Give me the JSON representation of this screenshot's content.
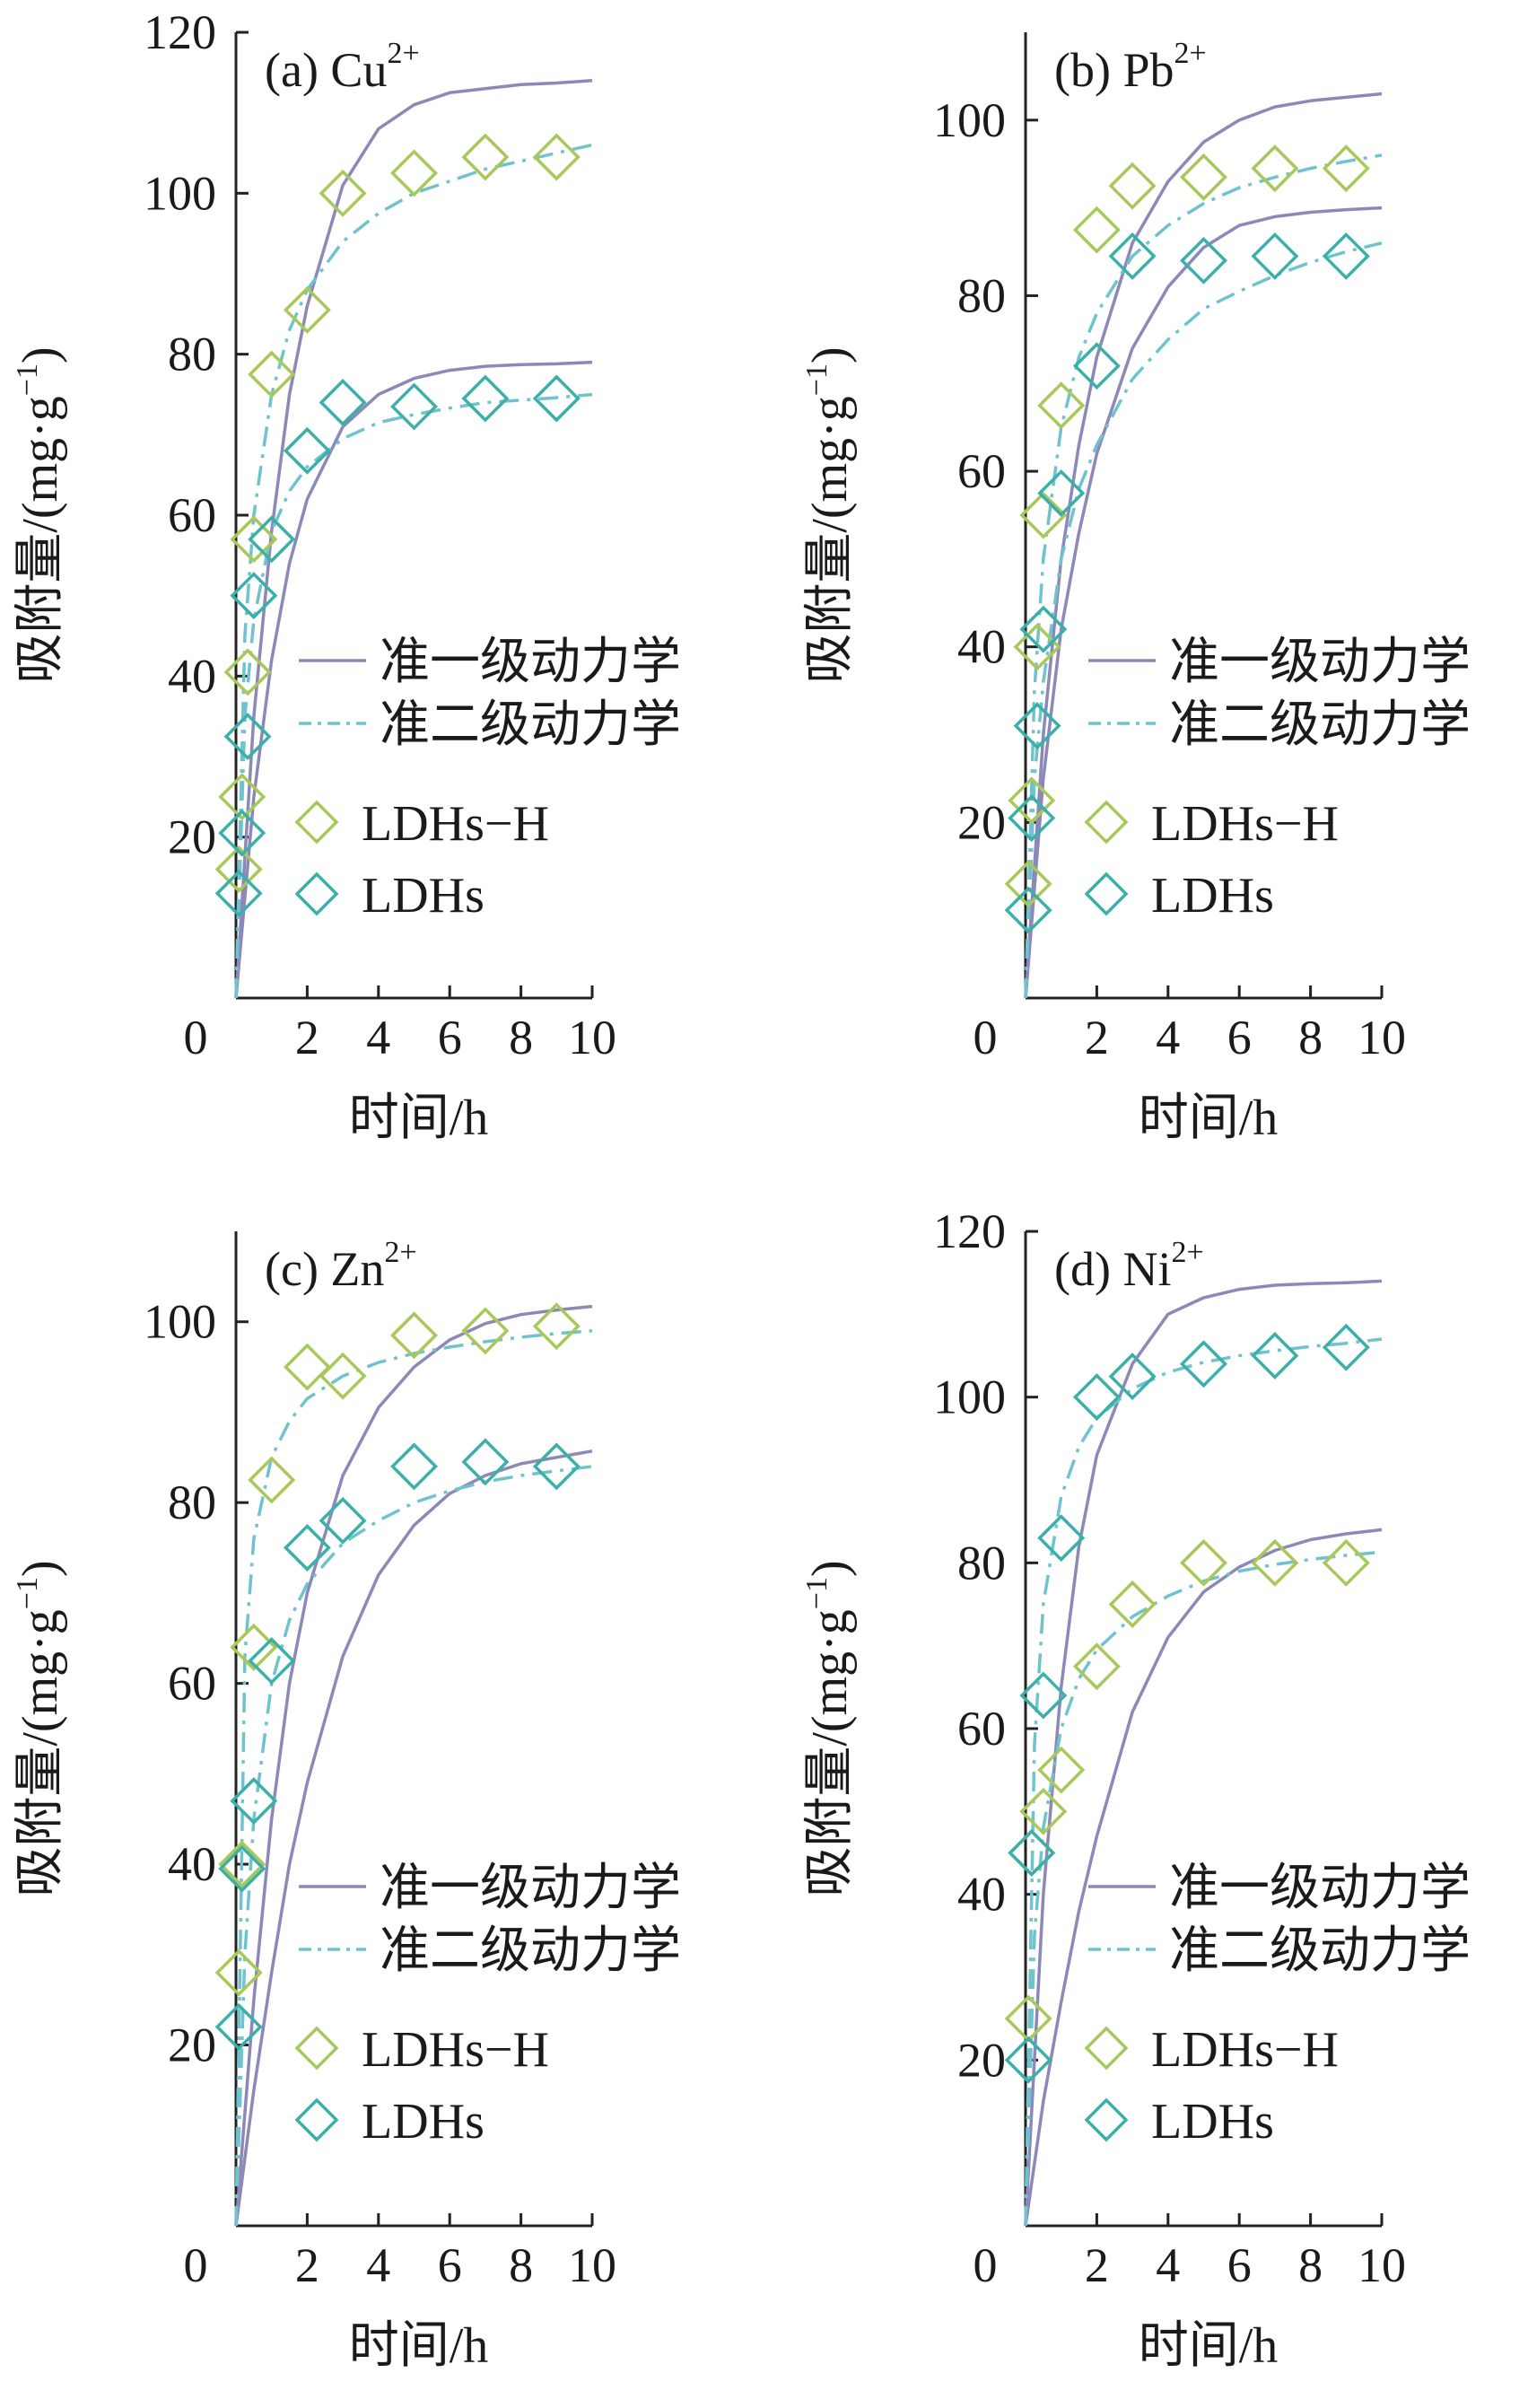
{
  "figure": {
    "colors": {
      "pfo_line": "#8c88b8",
      "pso_line": "#6fc3cf",
      "ldhs_h_marker": "#a8c85a",
      "ldhs_marker": "#3ab0a8",
      "axis": "#222222"
    }
  },
  "chart_data": [
    {
      "type": "scatter",
      "panel_label": "(a)",
      "ion": "Cu",
      "ion_charge": "2+",
      "xlabel": "时间/h",
      "ylabel": "吸附量/(mg·g",
      "ylabel_sup": "−1",
      "ylabel_tail": ")",
      "xlim": [
        0,
        10
      ],
      "ylim": [
        0,
        120
      ],
      "xticks": [
        0,
        2,
        4,
        6,
        8,
        10
      ],
      "yticks": [
        20,
        40,
        60,
        80,
        100,
        120
      ],
      "legend": {
        "position": "middle-right",
        "line_labels": [
          "准一级动力学",
          "准二级动力学"
        ],
        "marker_labels": [
          "LDHs−H",
          "LDHs"
        ]
      },
      "series": [
        {
          "name": "LDHs−H",
          "kind": "marker",
          "style": "ldhs_h",
          "x": [
            0.08,
            0.17,
            0.33,
            0.5,
            1.0,
            2.0,
            3.0,
            5.0,
            7.0,
            9.0
          ],
          "y": [
            16,
            25,
            40.5,
            57,
            77.5,
            85.5,
            100,
            102.5,
            104.5,
            104.5
          ]
        },
        {
          "name": "LDHs",
          "kind": "marker",
          "style": "ldhs",
          "x": [
            0.08,
            0.17,
            0.33,
            0.5,
            1.0,
            2.0,
            3.0,
            5.0,
            7.0,
            9.0
          ],
          "y": [
            13,
            20.5,
            32.5,
            50,
            57,
            68,
            74,
            73.5,
            74.5,
            74.5
          ]
        },
        {
          "name": "准一级动力学",
          "kind": "line",
          "style": "pfo",
          "x": [
            0,
            0.5,
            1,
            1.5,
            2,
            3,
            4,
            5,
            6,
            7,
            8,
            9,
            10
          ],
          "y": [
            0,
            35,
            58,
            75,
            86,
            101,
            108,
            111,
            112.5,
            113,
            113.5,
            113.7,
            114
          ]
        },
        {
          "name": "准二级动力学",
          "kind": "line",
          "style": "pso",
          "x": [
            0,
            0.25,
            0.5,
            1,
            1.5,
            2,
            3,
            4,
            5,
            6,
            7,
            8,
            9,
            10
          ],
          "y": [
            0,
            45,
            60,
            75,
            83,
            88,
            94,
            97.5,
            100,
            101.5,
            103,
            104,
            105,
            106
          ]
        },
        {
          "name": "准一级动力学",
          "kind": "line",
          "style": "pfo",
          "x": [
            0,
            0.5,
            1,
            1.5,
            2,
            3,
            4,
            5,
            6,
            7,
            8,
            9,
            10
          ],
          "y": [
            0,
            25,
            42,
            54,
            62,
            71,
            75,
            77,
            78,
            78.5,
            78.7,
            78.8,
            79
          ]
        },
        {
          "name": "准二级动力学",
          "kind": "line",
          "style": "pso",
          "x": [
            0,
            0.25,
            0.5,
            1,
            1.5,
            2,
            3,
            4,
            5,
            6,
            7,
            8,
            9,
            10
          ],
          "y": [
            0,
            35,
            47,
            58,
            63,
            66,
            69.5,
            71.5,
            72.5,
            73.3,
            74,
            74.3,
            74.6,
            75
          ]
        }
      ]
    },
    {
      "type": "scatter",
      "panel_label": "(b)",
      "ion": "Pb",
      "ion_charge": "2+",
      "xlabel": "时间/h",
      "ylabel": "吸附量/(mg·g",
      "ylabel_sup": "−1",
      "ylabel_tail": ")",
      "xlim": [
        0,
        10
      ],
      "ylim": [
        0,
        110
      ],
      "xticks": [
        0,
        2,
        4,
        6,
        8,
        10
      ],
      "yticks": [
        20,
        40,
        60,
        80,
        100
      ],
      "legend": {
        "position": "middle-right",
        "line_labels": [
          "准一级动力学",
          "准二级动力学"
        ],
        "marker_labels": [
          "LDHs−H",
          "LDHs"
        ]
      },
      "series": [
        {
          "name": "LDHs−H",
          "kind": "marker",
          "style": "ldhs_h",
          "x": [
            0.08,
            0.17,
            0.33,
            0.5,
            1.0,
            2.0,
            3.0,
            5.0,
            7.0,
            9.0
          ],
          "y": [
            13,
            22.5,
            40,
            55,
            67.5,
            87.5,
            92.5,
            93.5,
            94.5,
            94.5
          ]
        },
        {
          "name": "LDHs",
          "kind": "marker",
          "style": "ldhs",
          "x": [
            0.08,
            0.17,
            0.33,
            0.5,
            1.0,
            2.0,
            3.0,
            5.0,
            7.0,
            9.0
          ],
          "y": [
            10,
            20.5,
            31,
            42,
            57.5,
            72,
            84.5,
            84,
            84.5,
            84.5
          ]
        },
        {
          "name": "准一级动力学",
          "kind": "line",
          "style": "pfo",
          "x": [
            0,
            0.5,
            1,
            1.5,
            2,
            3,
            4,
            5,
            6,
            7,
            8,
            9,
            10
          ],
          "y": [
            0,
            30,
            50,
            63,
            73,
            86,
            93,
            97.5,
            100,
            101.5,
            102.2,
            102.6,
            103
          ]
        },
        {
          "name": "准二级动力学",
          "kind": "line",
          "style": "pso",
          "x": [
            0,
            0.25,
            0.5,
            1,
            1.5,
            2,
            3,
            4,
            5,
            6,
            7,
            8,
            9,
            10
          ],
          "y": [
            0,
            35,
            50,
            65,
            73,
            78,
            84.5,
            88,
            90.5,
            92.3,
            93.5,
            94.5,
            95.3,
            96
          ]
        },
        {
          "name": "准一级动力学",
          "kind": "line",
          "style": "pfo",
          "x": [
            0,
            0.5,
            1,
            1.5,
            2,
            3,
            4,
            5,
            6,
            7,
            8,
            9,
            10
          ],
          "y": [
            0,
            25,
            42,
            53,
            62,
            74,
            81,
            85.5,
            88,
            89,
            89.5,
            89.8,
            90
          ]
        },
        {
          "name": "准二级动力学",
          "kind": "line",
          "style": "pso",
          "x": [
            0,
            0.25,
            0.5,
            1,
            1.5,
            2,
            3,
            4,
            5,
            6,
            7,
            8,
            9,
            10
          ],
          "y": [
            0,
            25,
            36,
            50,
            58,
            63,
            70.5,
            75,
            78.5,
            80.5,
            82.3,
            83.8,
            85,
            86
          ]
        }
      ]
    },
    {
      "type": "scatter",
      "panel_label": "(c)",
      "ion": "Zn",
      "ion_charge": "2+",
      "xlabel": "时间/h",
      "ylabel": "吸附量/(mg·g",
      "ylabel_sup": "−1",
      "ylabel_tail": ")",
      "xlim": [
        0,
        10
      ],
      "ylim": [
        0,
        110
      ],
      "xticks": [
        0,
        2,
        4,
        6,
        8,
        10
      ],
      "yticks": [
        20,
        40,
        60,
        80,
        100
      ],
      "legend": {
        "position": "middle-right",
        "line_labels": [
          "准一级动力学",
          "准二级动力学"
        ],
        "marker_labels": [
          "LDHs−H",
          "LDHs"
        ]
      },
      "series": [
        {
          "name": "LDHs−H",
          "kind": "marker",
          "style": "ldhs_h",
          "x": [
            0.08,
            0.17,
            0.5,
            1.0,
            2.0,
            3.0,
            5.0,
            7.0,
            9.0
          ],
          "y": [
            28,
            40,
            64,
            82.5,
            95,
            94,
            98.5,
            99,
            99.5
          ]
        },
        {
          "name": "LDHs",
          "kind": "marker",
          "style": "ldhs",
          "x": [
            0.08,
            0.17,
            0.5,
            1.0,
            2.0,
            3.0,
            5.0,
            7.0,
            9.0
          ],
          "y": [
            22,
            39.5,
            47,
            62.5,
            75,
            78,
            84,
            84.5,
            84
          ]
        },
        {
          "name": "准一级动力学",
          "kind": "line",
          "style": "pfo",
          "x": [
            0,
            0.5,
            1,
            1.5,
            2,
            3,
            4,
            5,
            6,
            7,
            8,
            9,
            10
          ],
          "y": [
            0,
            25,
            45,
            60,
            70,
            83,
            90.5,
            95,
            98,
            99.8,
            100.8,
            101.3,
            101.7
          ]
        },
        {
          "name": "准二级动力学",
          "kind": "line",
          "style": "pso",
          "x": [
            0,
            0.25,
            0.5,
            1,
            1.5,
            2,
            3,
            4,
            5,
            6,
            7,
            8,
            9,
            10
          ],
          "y": [
            0,
            63,
            76,
            85,
            89,
            91.5,
            94,
            95.5,
            96.5,
            97.2,
            97.8,
            98.3,
            98.7,
            99
          ]
        },
        {
          "name": "准一级动力学",
          "kind": "line",
          "style": "pfo",
          "x": [
            0,
            0.5,
            1,
            1.5,
            2,
            3,
            4,
            5,
            6,
            7,
            8,
            9,
            10
          ],
          "y": [
            0,
            15,
            28,
            40,
            49,
            63,
            72,
            77.5,
            81,
            83,
            84.3,
            85,
            85.7
          ]
        },
        {
          "name": "准二级动力学",
          "kind": "line",
          "style": "pso",
          "x": [
            0,
            0.25,
            0.5,
            1,
            1.5,
            2,
            3,
            4,
            5,
            6,
            7,
            8,
            9,
            10
          ],
          "y": [
            0,
            30,
            45,
            60,
            67,
            71,
            75.5,
            78,
            80,
            81.3,
            82.3,
            83,
            83.5,
            84
          ]
        }
      ]
    },
    {
      "type": "scatter",
      "panel_label": "(d)",
      "ion": "Ni",
      "ion_charge": "2+",
      "xlabel": "时间/h",
      "ylabel": "吸附量/(mg·g",
      "ylabel_sup": "−1",
      "ylabel_tail": ")",
      "xlim": [
        0,
        10
      ],
      "ylim": [
        0,
        120
      ],
      "xticks": [
        0,
        2,
        4,
        6,
        8,
        10
      ],
      "yticks": [
        20,
        40,
        60,
        80,
        100,
        120
      ],
      "legend": {
        "position": "middle-right",
        "line_labels": [
          "准一级动力学",
          "准二级动力学"
        ],
        "marker_labels": [
          "LDHs−H",
          "LDHs"
        ]
      },
      "series": [
        {
          "name": "LDHs−H",
          "kind": "marker",
          "style": "ldhs_h",
          "x": [
            0.08,
            0.17,
            0.5,
            1.0,
            2.0,
            3.0,
            5.0,
            7.0,
            9.0
          ],
          "y": [
            25,
            45,
            50,
            55,
            67.5,
            75,
            80,
            80,
            80
          ]
        },
        {
          "name": "LDHs",
          "kind": "marker",
          "style": "ldhs",
          "x": [
            0.08,
            0.17,
            0.5,
            1.0,
            2.0,
            3.0,
            5.0,
            7.0,
            9.0
          ],
          "y": [
            20,
            45,
            64,
            83,
            100,
            102.5,
            104,
            105,
            106
          ]
        },
        {
          "name": "准一级动力学",
          "kind": "line",
          "style": "pfo",
          "x": [
            0,
            0.5,
            1,
            1.5,
            2,
            3,
            4,
            5,
            6,
            7,
            8,
            9,
            10
          ],
          "y": [
            0,
            40,
            65,
            82,
            93,
            104,
            110,
            112,
            113,
            113.5,
            113.7,
            113.8,
            114
          ]
        },
        {
          "name": "准二级动力学",
          "kind": "line",
          "style": "pso",
          "x": [
            0,
            0.25,
            0.5,
            1,
            1.5,
            2,
            3,
            4,
            5,
            6,
            7,
            8,
            9,
            10
          ],
          "y": [
            0,
            58,
            75,
            88,
            94,
            97.5,
            101,
            103,
            104.2,
            105,
            105.6,
            106.1,
            106.5,
            107
          ]
        },
        {
          "name": "准一级动力学",
          "kind": "line",
          "style": "pfo",
          "x": [
            0,
            0.5,
            1,
            1.5,
            2,
            3,
            4,
            5,
            6,
            7,
            8,
            9,
            10
          ],
          "y": [
            0,
            15,
            27,
            38,
            47,
            62,
            71,
            76.5,
            79.5,
            81.5,
            82.8,
            83.5,
            84
          ]
        },
        {
          "name": "准二级动力学",
          "kind": "line",
          "style": "pso",
          "x": [
            0,
            0.25,
            0.5,
            1,
            1.5,
            2,
            3,
            4,
            5,
            6,
            7,
            8,
            9,
            10
          ],
          "y": [
            0,
            35,
            48,
            60,
            66,
            69.5,
            73.5,
            76,
            77.8,
            79,
            79.8,
            80.4,
            80.9,
            81.3
          ]
        }
      ]
    }
  ]
}
